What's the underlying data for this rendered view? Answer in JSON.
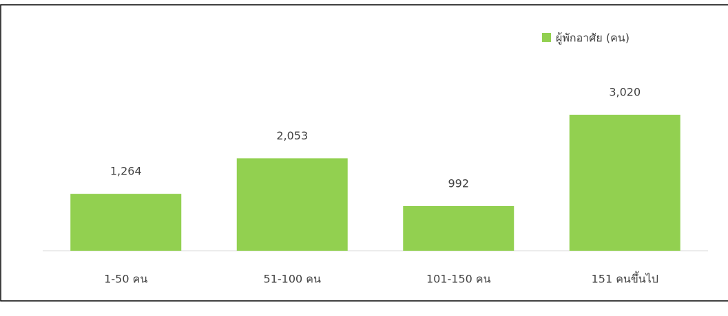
{
  "chart_data": {
    "type": "bar",
    "categories": [
      "1-50 คน",
      "51-100 คน",
      "101-150 คน",
      "151 คนขึ้นไป"
    ],
    "series": [
      {
        "name": "ผู้พักอาศัย (คน)",
        "color": "#92d050",
        "values": [
          1264,
          2053,
          992,
          3020
        ],
        "value_labels": [
          "1,264",
          "2,053",
          "992",
          "3,020"
        ]
      }
    ]
  }
}
